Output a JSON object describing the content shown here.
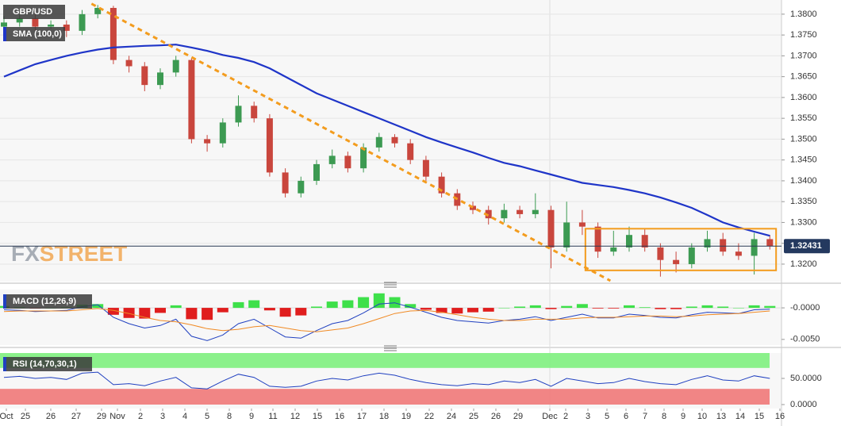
{
  "chart_data": [
    {
      "type": "candlestick",
      "title": "GBP/USD",
      "x_labels": [
        "Oct",
        "25",
        "26",
        "27",
        "29",
        "Nov",
        "2",
        "3",
        "4",
        "5",
        "8",
        "9",
        "11",
        "12",
        "15",
        "16",
        "17",
        "18",
        "19",
        "22",
        "24",
        "25",
        "26",
        "29",
        "Dec",
        "2",
        "3",
        "5",
        "6",
        "7",
        "8",
        "9",
        "10",
        "13",
        "14",
        "15",
        "16"
      ],
      "open": [
        1.377,
        1.378,
        1.379,
        1.377,
        1.3775,
        1.376,
        1.38,
        1.3815,
        1.369,
        1.3675,
        1.363,
        1.366,
        1.369,
        1.35,
        1.349,
        1.354,
        1.358,
        1.355,
        1.342,
        1.337,
        1.34,
        1.344,
        1.346,
        1.343,
        1.348,
        1.3505,
        1.349,
        1.345,
        1.341,
        1.337,
        1.334,
        1.333,
        1.331,
        1.333,
        1.332,
        1.333,
        1.324,
        1.33,
        1.329,
        1.323,
        1.324,
        1.327,
        1.324,
        1.321,
        1.32,
        1.324,
        1.326,
        1.323,
        1.322,
        1.326
      ],
      "high": [
        1.3795,
        1.38,
        1.38,
        1.3785,
        1.3785,
        1.381,
        1.3822,
        1.382,
        1.37,
        1.3685,
        1.367,
        1.37,
        1.3695,
        1.351,
        1.355,
        1.3605,
        1.359,
        1.356,
        1.343,
        1.341,
        1.345,
        1.3475,
        1.347,
        1.349,
        1.3515,
        1.3512,
        1.35,
        1.346,
        1.342,
        1.338,
        1.335,
        1.334,
        1.3345,
        1.334,
        1.337,
        1.334,
        1.335,
        1.333,
        1.33,
        1.328,
        1.329,
        1.3285,
        1.325,
        1.323,
        1.325,
        1.328,
        1.3275,
        1.325,
        1.3275,
        1.327
      ],
      "low": [
        1.376,
        1.377,
        1.376,
        1.3765,
        1.3745,
        1.375,
        1.379,
        1.368,
        1.366,
        1.3615,
        1.362,
        1.365,
        1.349,
        1.347,
        1.348,
        1.353,
        1.354,
        1.341,
        1.336,
        1.336,
        1.339,
        1.343,
        1.342,
        1.342,
        1.347,
        1.348,
        1.344,
        1.34,
        1.336,
        1.333,
        1.332,
        1.3295,
        1.33,
        1.331,
        1.331,
        1.319,
        1.323,
        1.327,
        1.3215,
        1.322,
        1.323,
        1.323,
        1.317,
        1.318,
        1.319,
        1.323,
        1.322,
        1.321,
        1.3175,
        1.3235
      ],
      "close": [
        1.378,
        1.379,
        1.377,
        1.3775,
        1.376,
        1.38,
        1.3815,
        1.369,
        1.3675,
        1.363,
        1.366,
        1.369,
        1.35,
        1.349,
        1.354,
        1.358,
        1.355,
        1.342,
        1.337,
        1.34,
        1.344,
        1.346,
        1.343,
        1.348,
        1.3505,
        1.349,
        1.345,
        1.341,
        1.337,
        1.334,
        1.333,
        1.331,
        1.333,
        1.332,
        1.333,
        1.324,
        1.33,
        1.329,
        1.323,
        1.324,
        1.327,
        1.324,
        1.321,
        1.32,
        1.324,
        1.326,
        1.323,
        1.322,
        1.326,
        1.3243
      ],
      "up_color": "#3c9a52",
      "down_color": "#c9463d",
      "sma": {
        "name": "SMA (100,0)",
        "color": "#1f35c8",
        "values": [
          1.365,
          1.3665,
          1.368,
          1.369,
          1.37,
          1.3708,
          1.3715,
          1.372,
          1.3722,
          1.3724,
          1.3725,
          1.3727,
          1.372,
          1.3712,
          1.3702,
          1.3695,
          1.3685,
          1.367,
          1.365,
          1.363,
          1.361,
          1.3595,
          1.358,
          1.3565,
          1.355,
          1.3535,
          1.352,
          1.3505,
          1.3492,
          1.348,
          1.3468,
          1.3455,
          1.3443,
          1.3435,
          1.3425,
          1.3415,
          1.3405,
          1.3395,
          1.339,
          1.3385,
          1.3378,
          1.337,
          1.336,
          1.3348,
          1.3335,
          1.3318,
          1.33,
          1.3288,
          1.3278,
          1.3268
        ]
      },
      "trendline": {
        "color": "#f39c1e",
        "from": [
          5.6,
          1.3825
        ],
        "to": [
          38.8,
          1.316
        ]
      },
      "box": {
        "color": "#f39c1e",
        "x": [
          37.2,
          49.4
        ],
        "y": [
          1.3185,
          1.3285
        ]
      },
      "last_price": 1.32431,
      "watermark": [
        "FX",
        "STREET"
      ],
      "ylim": [
        1.3158,
        1.3834
      ],
      "yticks": [
        {
          "value": 1.32,
          "label": "1.3200"
        },
        {
          "value": 1.325,
          "label": "1.3250"
        },
        {
          "value": 1.33,
          "label": "1.3300"
        },
        {
          "value": 1.335,
          "label": "1.3350"
        },
        {
          "value": 1.34,
          "label": "1.3400"
        },
        {
          "value": 1.345,
          "label": "1.3450"
        },
        {
          "value": 1.35,
          "label": "1.3500"
        },
        {
          "value": 1.355,
          "label": "1.3550"
        },
        {
          "value": 1.36,
          "label": "1.3600"
        },
        {
          "value": 1.365,
          "label": "1.3650"
        },
        {
          "value": 1.37,
          "label": "1.3700"
        },
        {
          "value": 1.375,
          "label": "1.3750"
        },
        {
          "value": 1.38,
          "label": "1.3800"
        }
      ],
      "grid": true
    },
    {
      "type": "macd",
      "title": "MACD (12,26,9)",
      "macd": {
        "color": "#2040c0",
        "values": [
          -0.0003,
          -0.0004,
          -0.0006,
          -0.0005,
          -0.0004,
          0.0002,
          0.0005,
          -0.0015,
          -0.0025,
          -0.0032,
          -0.0028,
          -0.0018,
          -0.0045,
          -0.0052,
          -0.0043,
          -0.0025,
          -0.0018,
          -0.0032,
          -0.0046,
          -0.0048,
          -0.0036,
          -0.0025,
          -0.002,
          -0.0008,
          0.0006,
          0.0008,
          0.0001,
          -0.0007,
          -0.0015,
          -0.002,
          -0.0022,
          -0.0024,
          -0.002,
          -0.0018,
          -0.0014,
          -0.002,
          -0.0015,
          -0.001,
          -0.0016,
          -0.0016,
          -0.001,
          -0.0012,
          -0.0015,
          -0.0016,
          -0.0011,
          -0.0007,
          -0.0008,
          -0.0009,
          -0.0003,
          -0.0002
        ]
      },
      "signal": {
        "color": "#f08a24",
        "values": [
          -0.0006,
          -0.0005,
          -0.0005,
          -0.0005,
          -0.0005,
          -0.0003,
          -0.0001,
          -0.0004,
          -0.0009,
          -0.0015,
          -0.002,
          -0.0022,
          -0.0027,
          -0.0033,
          -0.0036,
          -0.0034,
          -0.003,
          -0.0028,
          -0.0032,
          -0.0036,
          -0.0038,
          -0.0035,
          -0.0032,
          -0.0025,
          -0.0017,
          -0.0009,
          -0.0005,
          -0.0004,
          -0.0007,
          -0.0011,
          -0.0015,
          -0.0018,
          -0.002,
          -0.002,
          -0.0018,
          -0.0018,
          -0.0018,
          -0.0016,
          -0.0015,
          -0.0015,
          -0.0014,
          -0.0013,
          -0.0013,
          -0.0014,
          -0.0013,
          -0.0011,
          -0.001,
          -0.0009,
          -0.0007,
          -0.0005
        ]
      },
      "histogram": {
        "up_color": "#3ee04a",
        "down_color": "#e01e1e",
        "values": [
          0.0003,
          0.0001,
          -0.0001,
          0,
          0.0001,
          0.0005,
          0.0006,
          -0.0011,
          -0.0016,
          -0.0017,
          -0.0008,
          0.0004,
          -0.0018,
          -0.0019,
          -0.0007,
          0.0009,
          0.0012,
          -0.0004,
          -0.0014,
          -0.0012,
          0.0002,
          0.001,
          0.0012,
          0.0017,
          0.0023,
          0.0017,
          0.0006,
          -0.0003,
          -0.0008,
          -0.0009,
          -0.0007,
          -0.0006,
          0,
          0.0002,
          0.0004,
          -0.0002,
          0.0003,
          0.0006,
          -0.0001,
          -0.0001,
          0.0004,
          0.0001,
          -0.0002,
          -0.0002,
          0.0002,
          0.0004,
          0.0002,
          0,
          0.0004,
          0.0003
        ]
      },
      "ylim": [
        -0.0059,
        0.0029
      ],
      "yticks": [
        {
          "value": 0,
          "label": "-0.0000"
        },
        {
          "value": -0.005,
          "label": "-0.0050"
        }
      ]
    },
    {
      "type": "line",
      "title": "RSI (14,70,30,1)",
      "color": "#2040c0",
      "values": [
        52,
        54,
        50,
        52,
        48,
        60,
        62,
        38,
        40,
        36,
        45,
        52,
        32,
        30,
        45,
        58,
        52,
        35,
        33,
        35,
        45,
        50,
        47,
        55,
        60,
        56,
        48,
        42,
        38,
        36,
        40,
        38,
        45,
        42,
        48,
        35,
        50,
        45,
        40,
        42,
        50,
        44,
        40,
        38,
        48,
        55,
        47,
        45,
        55,
        50
      ],
      "overbought": {
        "range": [
          70,
          100
        ],
        "color": "#7eef7e"
      },
      "oversold": {
        "range": [
          0,
          30
        ],
        "color": "#f07878"
      },
      "ylim": [
        -7.6,
        98.5
      ],
      "yticks": [
        {
          "value": 50,
          "label": "50.0000"
        },
        {
          "value": 0,
          "label": "0.0000"
        }
      ]
    }
  ]
}
